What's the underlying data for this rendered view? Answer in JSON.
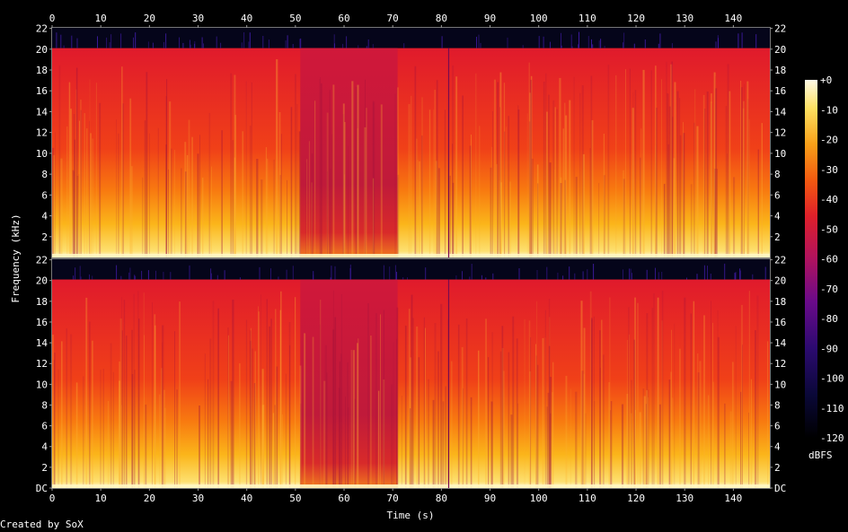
{
  "chart_data": {
    "type": "heatmap",
    "title": "",
    "xlabel": "Time (s)",
    "ylabel": "Frequency (kHz)",
    "xlim": [
      0,
      147.5
    ],
    "ylim": [
      0,
      22.05
    ],
    "x_ticks": [
      0,
      10,
      20,
      30,
      40,
      50,
      60,
      70,
      80,
      90,
      100,
      110,
      120,
      130,
      140
    ],
    "x_tick_labels": [
      "0",
      "10",
      "20",
      "30",
      "40",
      "50",
      "60",
      "70",
      "80",
      "90",
      "100",
      "110",
      "120",
      "130",
      "140"
    ],
    "y_ticks": [
      0,
      2,
      4,
      6,
      8,
      10,
      12,
      14,
      16,
      18,
      20,
      22
    ],
    "y_tick_labels_top": [
      "",
      "2",
      "4",
      "6",
      "8",
      "10",
      "12",
      "14",
      "16",
      "18",
      "20",
      "22"
    ],
    "y_tick_labels_bottom": [
      "DC",
      "2",
      "4",
      "6",
      "8",
      "10",
      "12",
      "14",
      "16",
      "18",
      "20",
      "22"
    ],
    "channels": 2,
    "colorbar": {
      "unit": "dBFS",
      "range": [
        -120,
        0
      ],
      "ticks": [
        0,
        -10,
        -20,
        -30,
        -40,
        -50,
        -60,
        -70,
        -80,
        -90,
        -100,
        -110,
        -120
      ],
      "tick_labels": [
        "+0",
        "-10",
        "-20",
        "-30",
        "-40",
        "-50",
        "-60",
        "-70",
        "-80",
        "-90",
        "-100",
        "-110",
        "-120"
      ],
      "colors": [
        "#000000",
        "#1a0a5a",
        "#5b0a8a",
        "#a0106a",
        "#d81a2a",
        "#f03a10",
        "#f87a10",
        "#fbb51a",
        "#fde060",
        "#fffbe0"
      ]
    },
    "cutoff_khz": 20.1,
    "quiet_section_s": [
      51,
      71
    ],
    "transient_s": 81.5
  },
  "credit": "Created by SoX"
}
